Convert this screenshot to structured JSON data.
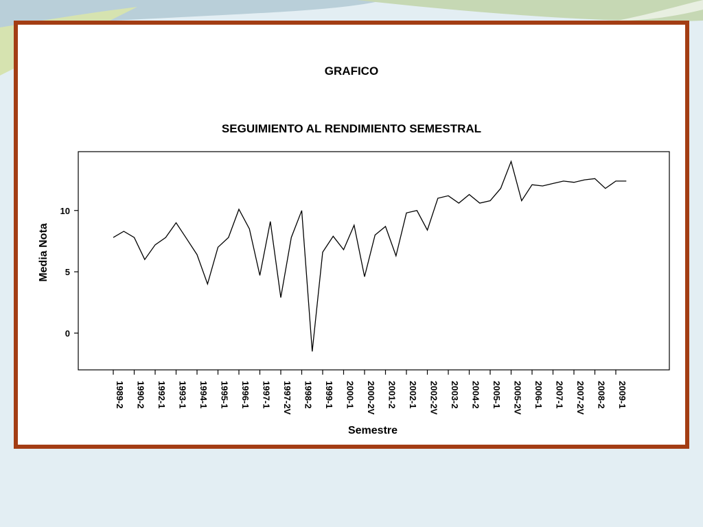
{
  "slide": {
    "title": "GRAFICO",
    "subtitle": "SEGUIMIENTO AL RENDIMIENTO SEMESTRAL",
    "colors": {
      "frame": "#a33d14",
      "background": "#e3eef3",
      "line": "#000000"
    }
  },
  "chart_data": {
    "type": "line",
    "title": "SEGUIMIENTO AL RENDIMIENTO SEMESTRAL",
    "xlabel": "Semestre",
    "ylabel": "Media Nota",
    "ylim": [
      -3,
      14.8
    ],
    "yticks": [
      0,
      5,
      10
    ],
    "grid": false,
    "x_tick_labels": [
      "1989-2",
      "1990-2",
      "1992-1",
      "1993-1",
      "1994-1",
      "1995-1",
      "1996-1",
      "1997-1",
      "1997-2V",
      "1998-2",
      "1999-1",
      "2000-1",
      "2000-2V",
      "2001-2",
      "2002-1",
      "2002-2V",
      "2003-2",
      "2004-2",
      "2005-1",
      "2005-2V",
      "2006-1",
      "2007-1",
      "2007-2V",
      "2008-2",
      "2009-1"
    ],
    "series": [
      {
        "values": [
          7.8,
          8.3,
          7.8,
          6.0,
          7.2,
          7.8,
          9.0,
          7.7,
          6.4,
          4.0,
          7.0,
          7.8,
          10.1,
          8.5,
          4.7,
          9.1,
          2.9,
          7.8,
          10.0,
          -1.5,
          6.6,
          7.9,
          6.8,
          8.8,
          4.6,
          8.0,
          8.7,
          6.3,
          9.8,
          10.0,
          8.4,
          11.0,
          11.2,
          10.6,
          11.3,
          10.6,
          10.8,
          11.8,
          14.0,
          10.8,
          12.1,
          12.0,
          12.2,
          12.4,
          12.3,
          12.5,
          12.6,
          11.8,
          12.4,
          12.4
        ]
      }
    ]
  }
}
